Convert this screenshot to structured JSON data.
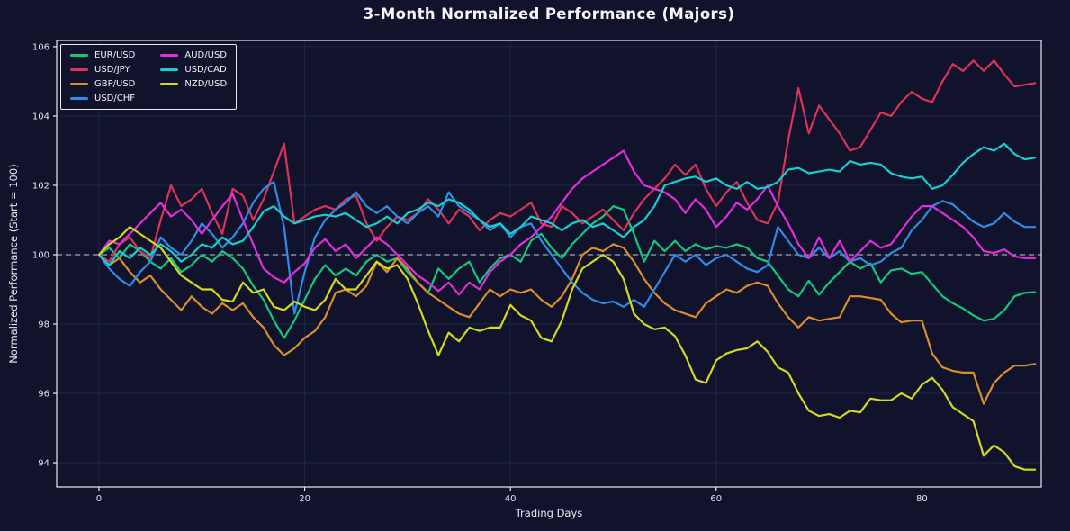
{
  "figure": {
    "title": "3-Month Normalized Performance (Majors)"
  },
  "chart_data": {
    "type": "line",
    "title": "3-Month Normalized Performance (Majors)",
    "xlabel": "Trading Days",
    "ylabel": "Normalized Performance (Start = 100)",
    "x_ticks": [
      0,
      20,
      40,
      60,
      80
    ],
    "y_ticks": [
      94,
      96,
      98,
      100,
      102,
      104,
      106
    ],
    "xlim": [
      -4.11,
      91.6
    ],
    "ylim": [
      93.3,
      106.18
    ],
    "grid": true,
    "legend_position": "upper left",
    "reference_line": {
      "y": 100,
      "style": "dashed",
      "color": "#e4e5ee"
    },
    "colors": {
      "background": "#10132b",
      "grid": "#1e2444",
      "spine": "#e9eaf2",
      "tick_text": "#e2e4ee",
      "title_text": "#f5f6fa"
    },
    "x_start_day": 0,
    "x_step": 1,
    "series": [
      {
        "name": "EUR/USD",
        "color": "#12c97c",
        "values": [
          100,
          100.2,
          99.9,
          100.3,
          100.1,
          99.8,
          99.6,
          99.9,
          99.5,
          99.7,
          100,
          99.8,
          100.1,
          99.9,
          99.6,
          99.1,
          98.7,
          98.1,
          97.6,
          98.1,
          98.7,
          99.3,
          99.7,
          99.4,
          99.6,
          99.4,
          99.8,
          100,
          99.8,
          99.9,
          99.5,
          99.2,
          98.9,
          99.6,
          99.3,
          99.6,
          99.8,
          99.2,
          99.6,
          99.9,
          100,
          99.8,
          100.4,
          100.6,
          100.2,
          99.9,
          100.3,
          100.6,
          100.9,
          101.1,
          101.4,
          101.3,
          100.6,
          99.8,
          100.4,
          100.1,
          100.4,
          100.1,
          100.3,
          100.15,
          100.25,
          100.2,
          100.3,
          100.2,
          99.9,
          99.8,
          99.4,
          99,
          98.8,
          99.25,
          98.85,
          99.2,
          99.5,
          99.8,
          99.6,
          99.75,
          99.2,
          99.55,
          99.6,
          99.45,
          99.5,
          99.15,
          98.8,
          98.6,
          98.45,
          98.25,
          98.1,
          98.15,
          98.4,
          98.8,
          98.9,
          98.92
        ]
      },
      {
        "name": "USD/JPY",
        "color": "#dd3358",
        "values": [
          100,
          99.8,
          100.3,
          100.5,
          100.1,
          99.9,
          101,
          102,
          101.4,
          101.6,
          101.9,
          101.2,
          100.6,
          101.9,
          101.7,
          101,
          101.6,
          102.4,
          103.2,
          100.9,
          101.1,
          101.3,
          101.4,
          101.3,
          101.6,
          101.7,
          100.9,
          100.4,
          100.8,
          101.1,
          101,
          101.2,
          101.6,
          101.3,
          100.9,
          101.3,
          101.1,
          100.7,
          101,
          101.2,
          101.1,
          101.3,
          101.5,
          100.9,
          100.8,
          101.4,
          101.2,
          100.9,
          101.1,
          101.3,
          101,
          100.7,
          101.2,
          101.6,
          101.9,
          102.2,
          102.6,
          102.3,
          102.6,
          101.9,
          101.4,
          101.8,
          102.1,
          101.5,
          101,
          100.9,
          101.5,
          103.3,
          104.8,
          103.5,
          104.3,
          103.9,
          103.5,
          103,
          103.1,
          103.6,
          104.1,
          104,
          104.4,
          104.7,
          104.5,
          104.4,
          105,
          105.5,
          105.3,
          105.6,
          105.3,
          105.6,
          105.2,
          104.85,
          104.9,
          104.95
        ]
      },
      {
        "name": "GBP/USD",
        "color": "#d98e2b",
        "values": [
          100,
          99.7,
          99.9,
          99.5,
          99.2,
          99.4,
          99,
          98.7,
          98.4,
          98.8,
          98.5,
          98.3,
          98.6,
          98.4,
          98.6,
          98.2,
          97.9,
          97.4,
          97.1,
          97.3,
          97.6,
          97.8,
          98.2,
          98.9,
          99,
          98.8,
          99.1,
          99.8,
          99.5,
          99.9,
          99.6,
          99.2,
          98.9,
          98.7,
          98.5,
          98.3,
          98.2,
          98.6,
          99,
          98.8,
          99,
          98.9,
          99,
          98.7,
          98.5,
          98.8,
          99.3,
          100,
          100.2,
          100.1,
          100.3,
          100.2,
          99.8,
          99.3,
          98.9,
          98.6,
          98.4,
          98.3,
          98.2,
          98.6,
          98.8,
          99,
          98.9,
          99.1,
          99.2,
          99.1,
          98.6,
          98.2,
          97.9,
          98.2,
          98.1,
          98.15,
          98.2,
          98.8,
          98.8,
          98.75,
          98.7,
          98.3,
          98.05,
          98.1,
          98.1,
          97.15,
          96.75,
          96.65,
          96.6,
          96.6,
          95.7,
          96.3,
          96.6,
          96.8,
          96.8,
          96.85
        ]
      },
      {
        "name": "USD/CHF",
        "color": "#2f8ce8",
        "values": [
          100,
          99.6,
          99.3,
          99.1,
          99.5,
          99.8,
          100.5,
          100.2,
          100,
          100.4,
          100.9,
          100.6,
          100.2,
          100.5,
          100.9,
          101.5,
          101.9,
          102.1,
          100.8,
          98.3,
          99.5,
          100.5,
          101,
          101.3,
          101.5,
          101.8,
          101.4,
          101.2,
          101.4,
          101.1,
          100.9,
          101.2,
          101.4,
          101.1,
          101.8,
          101.4,
          101.2,
          101,
          100.7,
          100.9,
          100.5,
          100.8,
          100.9,
          100.4,
          100,
          99.6,
          99.2,
          98.9,
          98.7,
          98.6,
          98.65,
          98.5,
          98.7,
          98.5,
          99,
          99.5,
          100,
          99.8,
          100,
          99.7,
          99.9,
          100,
          99.8,
          99.6,
          99.5,
          99.7,
          100.8,
          100.4,
          100,
          99.9,
          100.2,
          99.9,
          100.1,
          99.8,
          99.9,
          99.7,
          99.8,
          100.05,
          100.2,
          100.7,
          101,
          101.4,
          101.55,
          101.45,
          101.2,
          100.95,
          100.8,
          100.9,
          101.2,
          100.95,
          100.8,
          100.8
        ]
      },
      {
        "name": "AUD/USD",
        "color": "#e42ede",
        "values": [
          100,
          100.4,
          100.3,
          100.6,
          100.9,
          101.2,
          101.5,
          101.1,
          101.3,
          101,
          100.6,
          101,
          101.4,
          101.75,
          101,
          100.3,
          99.6,
          99.35,
          99.2,
          99.5,
          99.75,
          100.2,
          100.45,
          100.1,
          100.3,
          99.9,
          100.2,
          100.5,
          100.3,
          100,
          99.7,
          99.4,
          99.2,
          98.95,
          99.2,
          98.85,
          99.2,
          99,
          99.5,
          99.8,
          100,
          100.3,
          100.5,
          100.8,
          101.1,
          101.5,
          101.9,
          102.2,
          102.4,
          102.6,
          102.8,
          103,
          102.4,
          102,
          101.9,
          101.8,
          101.6,
          101.2,
          101.6,
          101.3,
          100.8,
          101.1,
          101.5,
          101.3,
          101.6,
          102,
          101.4,
          100.9,
          100.3,
          99.9,
          100.5,
          99.9,
          100.4,
          99.8,
          100.1,
          100.4,
          100.2,
          100.3,
          100.7,
          101.1,
          101.4,
          101.4,
          101.2,
          101,
          100.8,
          100.5,
          100.1,
          100.05,
          100.15,
          99.95,
          99.9,
          99.9
        ]
      },
      {
        "name": "USD/CAD",
        "color": "#16cfcf",
        "values": [
          100,
          99.7,
          100.1,
          99.9,
          100.2,
          100,
          100.3,
          100.1,
          99.8,
          100,
          100.3,
          100.2,
          100.5,
          100.3,
          100.4,
          100.8,
          101.25,
          101.4,
          101.1,
          100.9,
          101,
          101.1,
          101.15,
          101.1,
          101.2,
          101,
          100.8,
          100.9,
          101.1,
          100.9,
          101.2,
          101.3,
          101.5,
          101.4,
          101.6,
          101.5,
          101.3,
          101,
          100.8,
          100.9,
          100.6,
          100.8,
          101.1,
          101,
          100.9,
          100.7,
          100.9,
          101,
          100.8,
          100.9,
          100.7,
          100.5,
          100.8,
          101,
          101.4,
          102,
          102.1,
          102.2,
          102.25,
          102.1,
          102.2,
          102,
          101.9,
          102.1,
          101.9,
          101.95,
          102.1,
          102.45,
          102.5,
          102.35,
          102.4,
          102.45,
          102.4,
          102.7,
          102.6,
          102.65,
          102.6,
          102.35,
          102.25,
          102.2,
          102.25,
          101.9,
          102,
          102.3,
          102.65,
          102.9,
          103.1,
          103,
          103.2,
          102.9,
          102.75,
          102.8
        ]
      },
      {
        "name": "NZD/USD",
        "color": "#d3d821",
        "values": [
          100,
          100.3,
          100.5,
          100.8,
          100.6,
          100.4,
          100.2,
          99.8,
          99.4,
          99.2,
          99,
          99,
          98.7,
          98.65,
          99.2,
          98.9,
          99,
          98.5,
          98.4,
          98.65,
          98.5,
          98.4,
          98.7,
          99.3,
          99,
          99,
          99.4,
          99.8,
          99.6,
          99.7,
          99.3,
          98.6,
          97.8,
          97.1,
          97.75,
          97.5,
          97.9,
          97.8,
          97.9,
          97.9,
          98.55,
          98.25,
          98.1,
          97.6,
          97.5,
          98.1,
          99,
          99.6,
          99.8,
          100,
          99.8,
          99.3,
          98.3,
          98,
          97.85,
          97.9,
          97.65,
          97.1,
          96.4,
          96.3,
          96.95,
          97.15,
          97.25,
          97.3,
          97.5,
          97.2,
          96.75,
          96.6,
          96,
          95.5,
          95.35,
          95.4,
          95.3,
          95.5,
          95.45,
          95.85,
          95.8,
          95.8,
          96,
          95.85,
          96.25,
          96.45,
          96.1,
          95.6,
          95.4,
          95.2,
          94.2,
          94.5,
          94.3,
          93.9,
          93.8,
          93.8
        ]
      }
    ]
  }
}
